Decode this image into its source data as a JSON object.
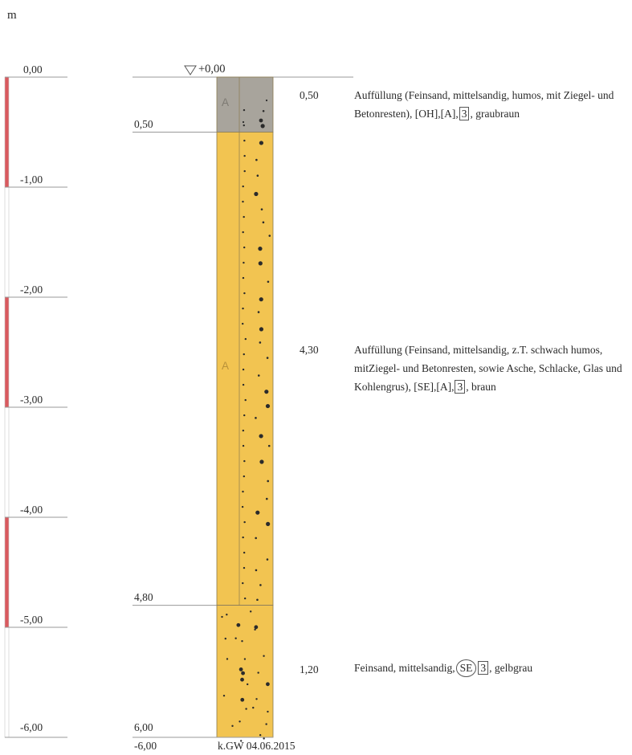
{
  "unit": "m",
  "scale": {
    "ticks": [
      "0,00",
      "-1,00",
      "-2,00",
      "-3,00",
      "-4,00",
      "-5,00",
      "-6,00"
    ],
    "values": [
      0,
      -1,
      -2,
      -3,
      -4,
      -5,
      -6
    ]
  },
  "colors": {
    "scale_red": "#d95a5f",
    "fill_gray": "#a8a49c",
    "fill_yellow": "#f2c451",
    "ink": "#2a2a2a",
    "grid": "#999999"
  },
  "column": {
    "top_label": "+0,00",
    "bottom_depth": "-6,00",
    "groundwater_note": "k.GW 04.06.2015"
  },
  "layers": [
    {
      "depth_label": "0,50",
      "thickness_label": "0,50",
      "top": 0,
      "bottom": 0.5,
      "fill": "gray",
      "symbol": "A",
      "desc_before": "Auffüllung (Feinsand, mittelsandig, humos, mit Ziegel- und Betonresten), [OH],[A],",
      "class": "3",
      "desc_after": ", graubraun"
    },
    {
      "depth_label": "4,80",
      "thickness_label": "4,30",
      "top": 0.5,
      "bottom": 4.8,
      "fill": "yellow",
      "symbol": "A",
      "desc_before": "Auffüllung (Feinsand, mittelsandig, z.T. schwach humos, mitZiegel- und Betonresten, sowie Asche, Schlacke, Glas und Kohlengrus), [SE],[A],",
      "class": "3",
      "desc_after": ", braun"
    },
    {
      "depth_label": "6,00",
      "thickness_label": "1,20",
      "top": 4.8,
      "bottom": 6.0,
      "fill": "yellow",
      "symbol": "",
      "desc_before": "Feinsand, mittelsandig,",
      "circle": "SE",
      "class": "3",
      "desc_after": ", gelbgrau"
    }
  ]
}
